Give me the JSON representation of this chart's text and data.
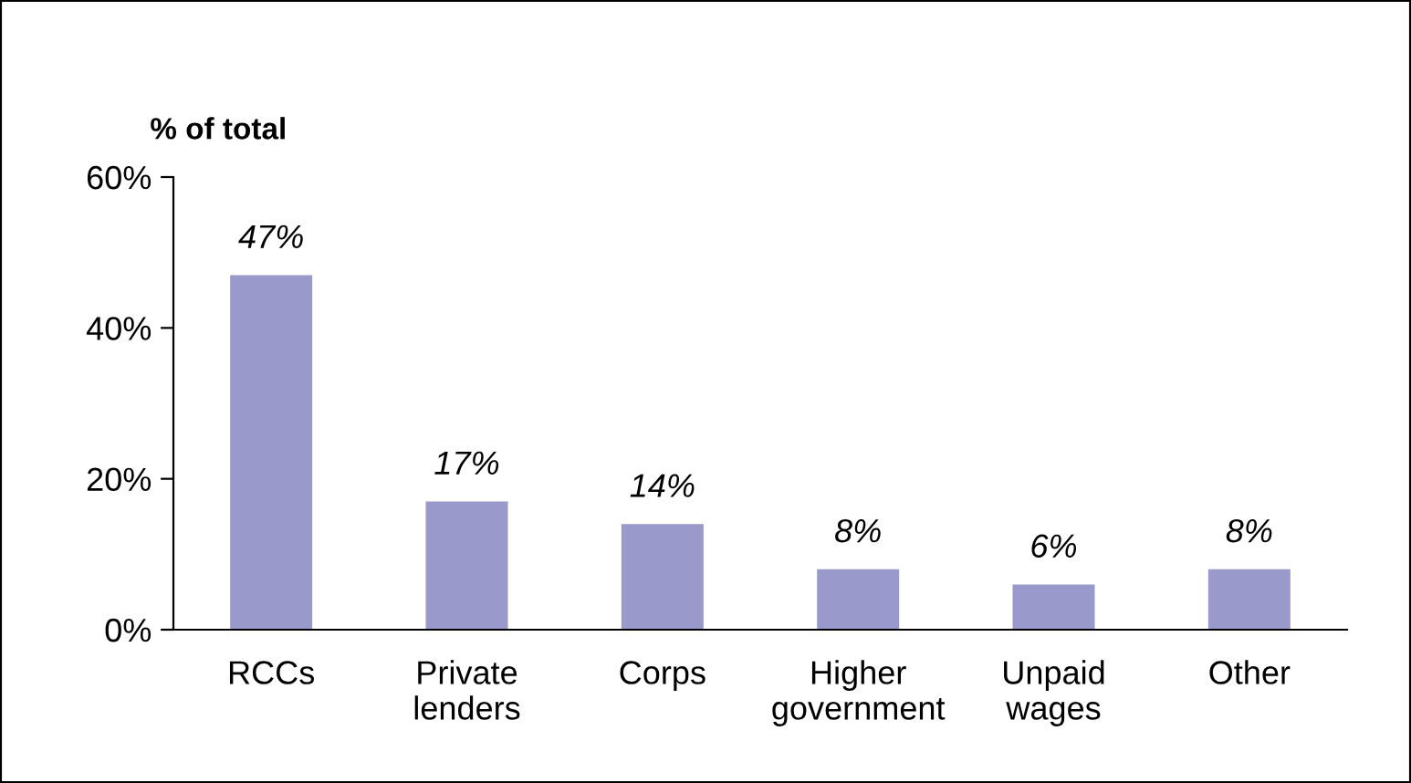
{
  "chart_data": {
    "type": "bar",
    "ylabel": "% of total",
    "categories": [
      "RCCs",
      "Private lenders",
      "Corps",
      "Higher government",
      "Unpaid wages",
      "Other"
    ],
    "values": [
      47,
      17,
      14,
      8,
      6,
      8
    ],
    "value_labels": [
      "47%",
      "17%",
      "14%",
      "8%",
      "6%",
      "8%"
    ],
    "color": "#9999cc",
    "ylim": [
      0,
      60
    ],
    "yticks": [
      {
        "value": 0,
        "label": "0%"
      },
      {
        "value": 20,
        "label": "20%"
      },
      {
        "value": 40,
        "label": "40%"
      },
      {
        "value": 60,
        "label": "60%"
      }
    ],
    "grid": false,
    "legend": false
  }
}
